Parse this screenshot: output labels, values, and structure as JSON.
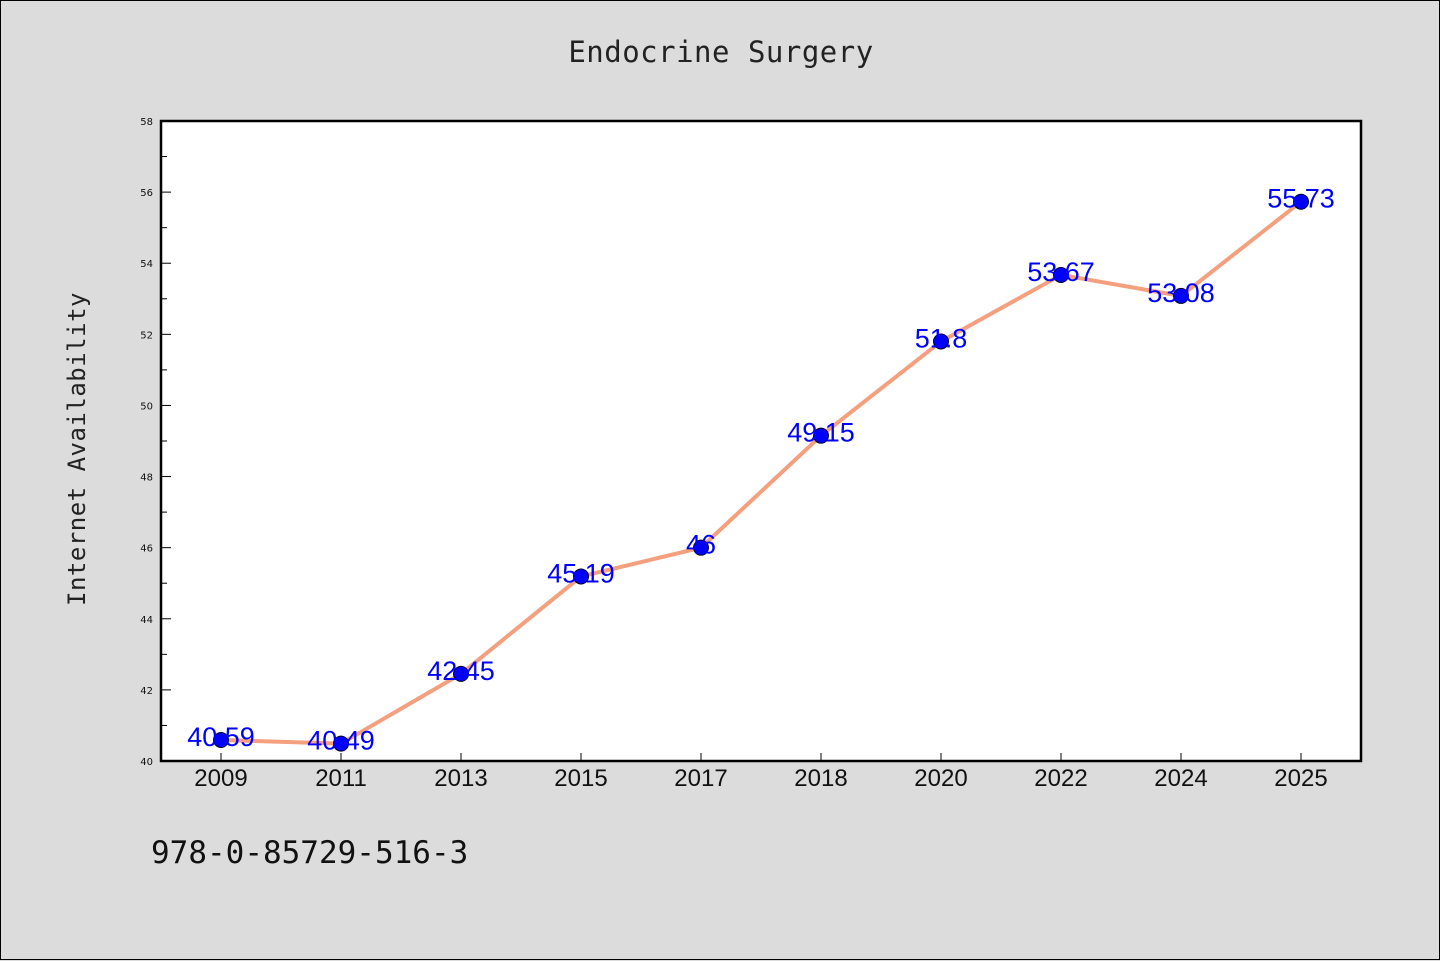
{
  "figure": {
    "footer_text": "978-0-85729-516-3"
  },
  "chart_data": {
    "type": "line",
    "title": "Endocrine Surgery",
    "xlabel": "",
    "ylabel": "Internet Availability",
    "categories": [
      "2009",
      "2011",
      "2013",
      "2015",
      "2017",
      "2018",
      "2020",
      "2022",
      "2024",
      "2025"
    ],
    "series": [
      {
        "values": [
          40.59,
          40.49,
          42.45,
          45.19,
          46,
          49.15,
          51.8,
          53.67,
          53.08,
          55.73
        ],
        "data_labels": [
          "40.59",
          "40.49",
          "42.45",
          "45.19",
          "46",
          "49.15",
          "51.8",
          "53.67",
          "53.08",
          "55.73"
        ],
        "line_color": "#f4a07e",
        "marker_color": "#0000ff"
      }
    ],
    "ylim": [
      40,
      58
    ],
    "y_ticks": [
      "40",
      "42",
      "44",
      "46",
      "48",
      "50",
      "52",
      "54",
      "56",
      "58"
    ],
    "grid": false,
    "legend": "none"
  }
}
